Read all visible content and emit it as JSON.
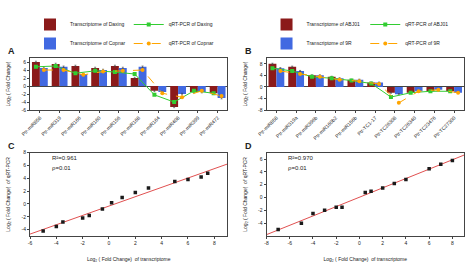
{
  "chart_data": [
    {
      "type": "bar",
      "title": "A",
      "ylabel": "Log₂ ( Fold Change)",
      "categories": [
        "Ptr-miR858",
        "Ptr-miR319",
        "Ptr-miR166",
        "Ptr-miR160",
        "Ptr-miR156",
        "Ptr-miR168",
        "Ptr-miR164",
        "Ptr-miR408",
        "Ptr-miR399",
        "Ptr-miR472"
      ],
      "series": [
        {
          "name": "Transcriptome of Daxing",
          "type": "bar",
          "color": "#8B1A1A",
          "values": [
            6.0,
            5.5,
            5.0,
            4.5,
            5.0,
            2.0,
            -1.2,
            -5.2,
            -1.5,
            -1.8
          ],
          "error": [
            0.2,
            0.2,
            0.2,
            0.2,
            0.2,
            0.2,
            0.2,
            0.2,
            0.2,
            0.2
          ]
        },
        {
          "name": "Transcriptome of Copnar",
          "type": "bar",
          "color": "#4169E1",
          "values": [
            4.5,
            4.8,
            3.0,
            4.0,
            4.5,
            4.8,
            -1.5,
            -2.0,
            -1.5,
            -3.0
          ],
          "error": [
            0.2,
            0.2,
            0.2,
            0.2,
            0.2,
            0.2,
            0.2,
            0.2,
            0.2,
            0.2
          ]
        },
        {
          "name": "qRT-PCR of Daxing",
          "type": "line",
          "color": "#32CD32",
          "marker": "square",
          "line_style": "solid",
          "values": [
            4.8,
            5.0,
            3.2,
            3.8,
            3.5,
            3.0,
            -2.2,
            -4.0,
            -1.2,
            -1.8
          ]
        },
        {
          "name": "qRT-PCR of Copnar",
          "type": "line",
          "color": "#FFA500",
          "marker": "circle",
          "line_style": "dashed",
          "values": [
            4.0,
            4.0,
            2.8,
            3.6,
            3.8,
            4.0,
            -1.8,
            -2.8,
            -1.2,
            -2.5
          ]
        }
      ],
      "ylim": [
        -6,
        7
      ],
      "yticks": [
        -6,
        -4,
        -2,
        0,
        2,
        4,
        6
      ],
      "grid": false,
      "legend": "top"
    },
    {
      "type": "bar",
      "title": "B",
      "ylabel": "Log₂ ( Fold Change)",
      "categories": [
        "Ptr-miR858",
        "Ptr-miR319a",
        "Ptr-miR396b",
        "Ptr-miR160b2",
        "Ptr-miR156b",
        "Ptr-TC1-17",
        "Ptr-TC26308",
        "Ptr-TC26340",
        "Ptr-TC23476",
        "Ptr-TC27300"
      ],
      "series": [
        {
          "name": "Transcriptome of ABJ01",
          "type": "bar",
          "color": "#8B1A1A",
          "values": [
            8.0,
            7.0,
            4.0,
            3.5,
            2.5,
            1.5,
            -2.0,
            -2.0,
            -1.5,
            -1.5
          ],
          "error": [
            0.2,
            0.2,
            0.2,
            0.2,
            0.2,
            0.2,
            0.2,
            0.2,
            0.2,
            0.2
          ]
        },
        {
          "name": "Transcriptome of 9R",
          "type": "bar",
          "color": "#4169E1",
          "values": [
            6.5,
            5.5,
            4.0,
            3.0,
            2.5,
            1.5,
            -2.5,
            -1.5,
            -1.0,
            -2.0
          ],
          "error": [
            0.2,
            0.2,
            0.2,
            0.2,
            0.2,
            0.2,
            0.2,
            0.2,
            0.2,
            0.2
          ]
        },
        {
          "name": "qRT-PCR of ABJ01",
          "type": "line",
          "color": "#32CD32",
          "marker": "square",
          "line_style": "solid",
          "values": [
            6.5,
            5.5,
            3.5,
            3.0,
            2.2,
            1.2,
            -3.5,
            -2.0,
            -1.5,
            -1.5
          ]
        },
        {
          "name": "qRT-PCR of 9R",
          "type": "line",
          "color": "#FFA500",
          "marker": "circle",
          "line_style": "dashed",
          "values": [
            5.5,
            4.5,
            3.5,
            2.5,
            2.0,
            1.0,
            -5.5,
            -1.5,
            -1.0,
            -2.0
          ]
        }
      ],
      "ylim": [
        -8,
        10
      ],
      "yticks": [
        -8,
        -4,
        0,
        4,
        8
      ],
      "grid": false,
      "legend": "top"
    },
    {
      "type": "scatter",
      "title": "C",
      "xlabel": "Log₂ ( Fold Change)  of transcriptome",
      "ylabel": "Log₂ ( Fold Change)  of qRT-PCR",
      "series": [
        {
          "type": "line",
          "color": "#E05050",
          "line_style": "solid",
          "x": [
            -6,
            9
          ],
          "values": [
            -4.7051,
            6.2382
          ]
        },
        {
          "type": "scatter",
          "color": "#1a1a1a",
          "marker": "square",
          "x": [
            -5,
            -4,
            -3.5,
            -2,
            -1.5,
            -0.5,
            0.2,
            1,
            2,
            3,
            5,
            6,
            7,
            7.5
          ],
          "values": [
            -4.2,
            -3.5,
            -2.8,
            -2.2,
            -1.8,
            -0.8,
            0.2,
            1.0,
            1.8,
            2.5,
            3.5,
            3.8,
            4.2,
            4.8
          ]
        }
      ],
      "xlim": [
        -6,
        9
      ],
      "xticks": [
        -6,
        -4,
        -2,
        0,
        2,
        4,
        6,
        8
      ],
      "ylim": [
        -5,
        8
      ],
      "yticks": [
        -4,
        -2,
        0,
        2,
        4,
        6,
        8
      ],
      "annotations": [
        "R²=0.961",
        "ρ=0.01"
      ],
      "grid": false
    },
    {
      "type": "scatter",
      "title": "D",
      "xlabel": "Log₂ ( Fold Change)  of transcriptome",
      "ylabel": "Log₂ ( Fold Change)  of qRT-PCR",
      "series": [
        {
          "type": "line",
          "color": "#E05050",
          "line_style": "solid",
          "x": [
            -8,
            9
          ],
          "values": [
            -5.7908,
            6.625
          ]
        },
        {
          "type": "scatter",
          "color": "#1a1a1a",
          "marker": "square",
          "x": [
            -7,
            -5,
            -4,
            -3,
            -2,
            -1.5,
            0.5,
            1,
            2,
            3,
            4,
            6,
            7,
            8
          ],
          "values": [
            -5,
            -4.0,
            -2.5,
            -2.0,
            -1.5,
            -1.5,
            0.8,
            1.0,
            1.5,
            2.2,
            2.8,
            4.5,
            5.2,
            5.8
          ]
        }
      ],
      "xlim": [
        -8,
        9
      ],
      "xticks": [
        -8,
        -6,
        -4,
        -2,
        0,
        2,
        4,
        6,
        8
      ],
      "ylim": [
        -6,
        7
      ],
      "yticks": [
        -4,
        -2,
        0,
        2,
        4,
        6
      ],
      "annotations": [
        "R²=0.970",
        "ρ=0.01"
      ],
      "grid": false
    }
  ]
}
